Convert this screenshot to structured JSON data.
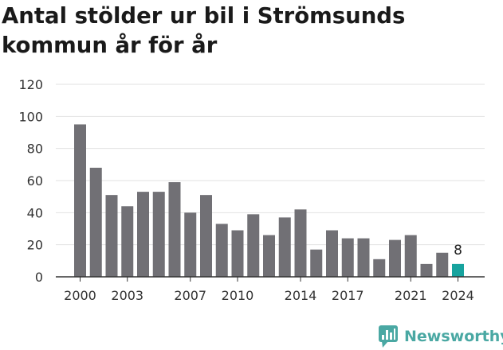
{
  "title": "Antal stölder ur bil i Strömsunds kommun år för år",
  "brand": {
    "name": "Newsworthy",
    "color": "#4aa8a3"
  },
  "colors": {
    "bar": "#717075",
    "highlight": "#17a39e",
    "grid": "#e2e2e2",
    "axis": "#333333",
    "text": "#333333"
  },
  "chart_data": {
    "type": "bar",
    "title": "Antal stölder ur bil i Strömsunds kommun år för år",
    "xlabel": "",
    "ylabel": "",
    "categories": [
      "2000",
      "2001",
      "2002",
      "2003",
      "2004",
      "2005",
      "2006",
      "2007",
      "2008",
      "2009",
      "2010",
      "2011",
      "2012",
      "2013",
      "2014",
      "2015",
      "2016",
      "2017",
      "2018",
      "2019",
      "2020",
      "2021",
      "2022",
      "2023",
      "2024"
    ],
    "values": [
      95,
      68,
      51,
      44,
      53,
      53,
      59,
      40,
      51,
      33,
      29,
      39,
      26,
      37,
      42,
      17,
      29,
      24,
      24,
      11,
      23,
      26,
      8,
      15,
      8
    ],
    "x_tick_labels": [
      "2000",
      "2003",
      "2007",
      "2010",
      "2014",
      "2017",
      "2021",
      "2024"
    ],
    "y_ticks": [
      0,
      20,
      40,
      60,
      80,
      100,
      120
    ],
    "ylim": [
      0,
      120
    ],
    "grid": true,
    "highlight": {
      "category": "2024",
      "label": "8"
    }
  }
}
